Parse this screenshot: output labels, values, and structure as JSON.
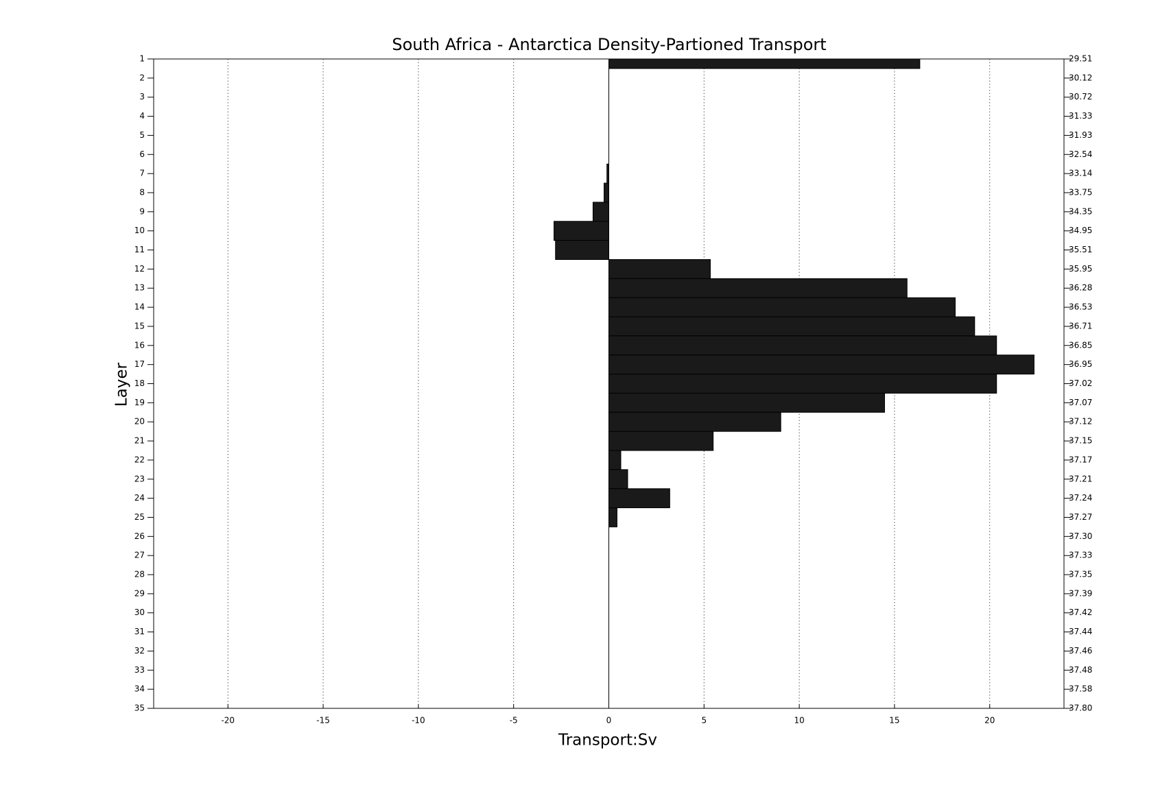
{
  "chart_data": {
    "type": "barh",
    "title": "South Africa - Antarctica Density-Partioned Transport",
    "xlabel": "Transport:Sv",
    "ylabel": "Layer",
    "categories": [
      1,
      2,
      3,
      4,
      5,
      6,
      7,
      8,
      9,
      10,
      11,
      12,
      13,
      14,
      15,
      16,
      17,
      18,
      19,
      20,
      21,
      22,
      23,
      24,
      25,
      26,
      27,
      28,
      29,
      30,
      31,
      32,
      33,
      34,
      35
    ],
    "values": [
      16.33,
      0,
      0,
      0,
      0,
      0,
      -0.1,
      -0.25,
      -0.83,
      -2.88,
      -2.8,
      5.33,
      15.66,
      18.19,
      19.21,
      20.36,
      22.33,
      20.36,
      14.48,
      9.03,
      5.48,
      0.63,
      0.99,
      3.2,
      0.43,
      0,
      0,
      0,
      0,
      0,
      0,
      0,
      0,
      0,
      0
    ],
    "y2_labels": [
      "29.51",
      "30.12",
      "30.72",
      "31.33",
      "31.93",
      "32.54",
      "33.14",
      "33.75",
      "34.35",
      "34.95",
      "35.51",
      "35.95",
      "36.28",
      "36.53",
      "36.71",
      "36.85",
      "36.95",
      "37.02",
      "37.07",
      "37.12",
      "37.15",
      "37.17",
      "37.21",
      "37.24",
      "37.27",
      "37.30",
      "37.33",
      "37.35",
      "37.39",
      "37.42",
      "37.44",
      "37.46",
      "37.48",
      "37.58",
      "37.80"
    ],
    "color": "#1a1a1a",
    "xlim": [
      -23.9,
      23.9
    ],
    "xticks": [
      -20,
      -15,
      -10,
      -5,
      0,
      5,
      10,
      15,
      20
    ],
    "ylim": [
      1,
      35
    ],
    "grid": true
  }
}
